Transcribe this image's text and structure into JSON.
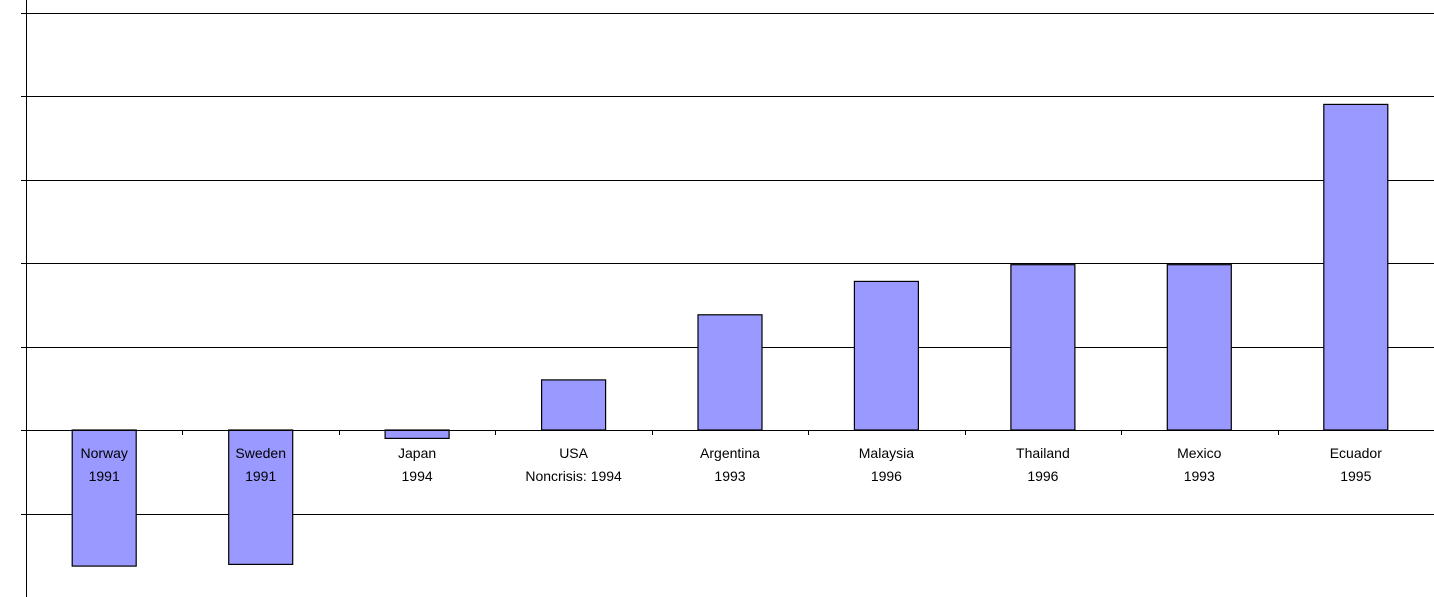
{
  "chart_data": {
    "type": "bar",
    "title": "",
    "xlabel": "",
    "ylabel": "",
    "categories": [
      [
        "Norway",
        "1991"
      ],
      [
        "Sweden",
        "1991"
      ],
      [
        "Japan",
        "1994"
      ],
      [
        "USA",
        "Noncrisis: 1994"
      ],
      [
        "Argentina",
        "1993"
      ],
      [
        "Malaysia",
        "1996"
      ],
      [
        "Thailand",
        "1996"
      ],
      [
        "Mexico",
        "1993"
      ],
      [
        "Ecuador",
        "1995"
      ]
    ],
    "values": [
      -1.63,
      -1.61,
      -0.1,
      0.6,
      1.38,
      1.78,
      1.98,
      1.98,
      3.9
    ],
    "ylim": [
      -2,
      5
    ],
    "gridlines": [
      -1,
      0,
      1,
      2,
      3,
      4,
      5
    ],
    "grid": true,
    "legend": "none",
    "bar_color": "#9999ff",
    "bar_edge_color": "#000000"
  }
}
